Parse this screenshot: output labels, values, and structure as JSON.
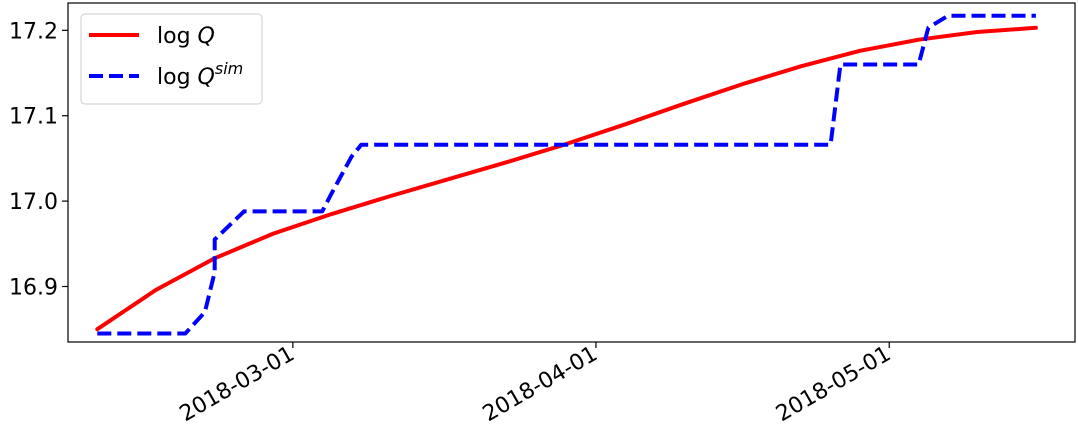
{
  "chart_data": {
    "type": "line",
    "x_type": "date",
    "xlim": [
      "2018-02-06",
      "2018-05-20"
    ],
    "ylim": [
      16.835,
      17.232
    ],
    "x_ticks": [
      "2018-03-01",
      "2018-04-01",
      "2018-05-01"
    ],
    "y_ticks": [
      16.9,
      17.0,
      17.1,
      17.2
    ],
    "y_tick_labels": [
      "16.9",
      "17.0",
      "17.1",
      "17.2"
    ],
    "legend_position": "top-left",
    "grid": false,
    "series": [
      {
        "name": "log Q",
        "name_base": "log ",
        "name_italic": "Q",
        "name_sup": "",
        "color": "#ff0000",
        "style": "solid",
        "x": [
          "2018-02-09",
          "2018-02-15",
          "2018-02-21",
          "2018-02-27",
          "2018-03-05",
          "2018-03-11",
          "2018-03-17",
          "2018-03-23",
          "2018-03-29",
          "2018-04-04",
          "2018-04-10",
          "2018-04-16",
          "2018-04-22",
          "2018-04-28",
          "2018-05-04",
          "2018-05-10",
          "2018-05-16"
        ],
        "y": [
          16.85,
          16.896,
          16.933,
          16.962,
          16.985,
          17.006,
          17.026,
          17.046,
          17.067,
          17.09,
          17.114,
          17.137,
          17.158,
          17.176,
          17.189,
          17.198,
          17.203
        ]
      },
      {
        "name": "log Q^sim",
        "name_base": "log ",
        "name_italic": "Q",
        "name_sup": "sim",
        "color": "#0000ff",
        "style": "dashed",
        "x": [
          "2018-02-09",
          "2018-02-18",
          "2018-02-20",
          "2018-02-21",
          "2018-02-21",
          "2018-02-24",
          "2018-02-26",
          "2018-03-04",
          "2018-03-05",
          "2018-03-07",
          "2018-03-08",
          "2018-03-10",
          "2018-04-25",
          "2018-04-26",
          "2018-05-04",
          "2018-05-05",
          "2018-05-07",
          "2018-05-16"
        ],
        "y": [
          16.845,
          16.845,
          16.87,
          16.917,
          16.955,
          16.988,
          16.988,
          16.988,
          17.01,
          17.052,
          17.066,
          17.066,
          17.066,
          17.16,
          17.16,
          17.203,
          17.217,
          17.217
        ]
      }
    ]
  }
}
